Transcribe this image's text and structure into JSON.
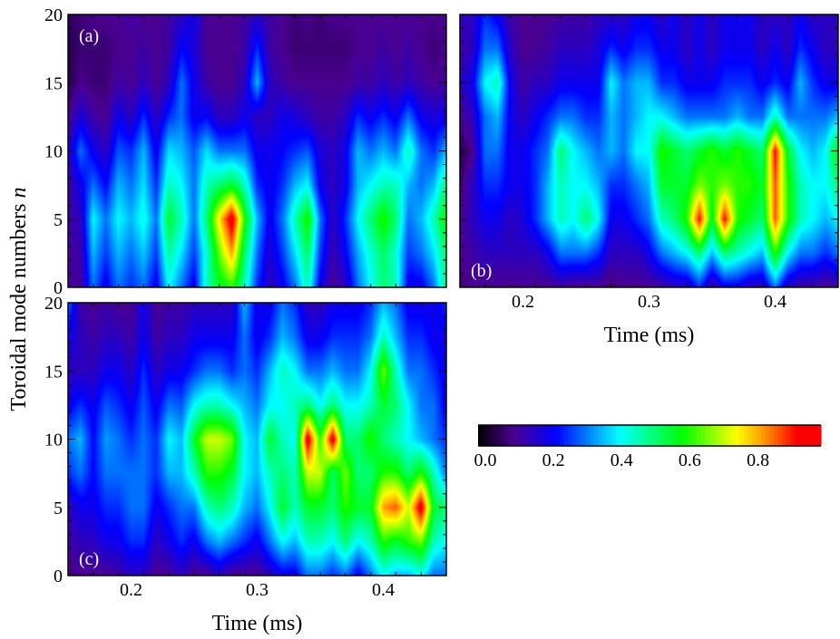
{
  "chart_data": [
    {
      "type": "heatmap",
      "panel_label": "(a)",
      "xlabel": "",
      "ylabel": "Toroidal mode numbers n",
      "xlim": [
        0.15,
        0.45
      ],
      "ylim": [
        0,
        20
      ],
      "x_ticks": [
        "0.2",
        "0.3",
        "0.4"
      ],
      "x_tick_labels_shown": false,
      "y_ticks": [
        "0",
        "5",
        "10",
        "15",
        "20"
      ],
      "x": [
        0.15,
        0.16,
        0.17,
        0.18,
        0.19,
        0.2,
        0.21,
        0.22,
        0.23,
        0.24,
        0.25,
        0.26,
        0.27,
        0.28,
        0.29,
        0.3,
        0.31,
        0.32,
        0.33,
        0.34,
        0.35,
        0.36,
        0.37,
        0.38,
        0.39,
        0.4,
        0.41,
        0.42,
        0.43,
        0.44,
        0.45
      ],
      "y": [
        0,
        2.5,
        5,
        7.5,
        10,
        12.5,
        15,
        17.5,
        20
      ],
      "values": [
        [
          0.1,
          0.12,
          0.3,
          0.2,
          0.3,
          0.25,
          0.3,
          0.2,
          0.4,
          0.3,
          0.2,
          0.45,
          0.55,
          0.6,
          0.45,
          0.25,
          0.15,
          0.2,
          0.3,
          0.45,
          0.2,
          0.1,
          0.15,
          0.3,
          0.4,
          0.5,
          0.45,
          0.2,
          0.2,
          0.3,
          0.5
        ],
        [
          0.11,
          0.13,
          0.35,
          0.26,
          0.35,
          0.3,
          0.36,
          0.26,
          0.47,
          0.38,
          0.26,
          0.43,
          0.64,
          0.8,
          0.51,
          0.3,
          0.17,
          0.26,
          0.38,
          0.51,
          0.26,
          0.13,
          0.21,
          0.34,
          0.43,
          0.51,
          0.43,
          0.26,
          0.3,
          0.38,
          0.51
        ],
        [
          0.12,
          0.15,
          0.4,
          0.3,
          0.4,
          0.35,
          0.42,
          0.3,
          0.55,
          0.45,
          0.3,
          0.5,
          0.75,
          0.95,
          0.6,
          0.35,
          0.2,
          0.3,
          0.45,
          0.6,
          0.3,
          0.15,
          0.25,
          0.4,
          0.5,
          0.6,
          0.5,
          0.3,
          0.35,
          0.45,
          0.6
        ],
        [
          0.12,
          0.2,
          0.3,
          0.22,
          0.35,
          0.3,
          0.38,
          0.25,
          0.45,
          0.4,
          0.3,
          0.45,
          0.5,
          0.55,
          0.45,
          0.25,
          0.2,
          0.25,
          0.35,
          0.4,
          0.2,
          0.15,
          0.2,
          0.35,
          0.4,
          0.45,
          0.45,
          0.35,
          0.3,
          0.35,
          0.5
        ],
        [
          0.15,
          0.3,
          0.2,
          0.15,
          0.28,
          0.25,
          0.35,
          0.2,
          0.38,
          0.35,
          0.28,
          0.38,
          0.3,
          0.3,
          0.3,
          0.2,
          0.2,
          0.22,
          0.25,
          0.28,
          0.18,
          0.15,
          0.2,
          0.35,
          0.3,
          0.35,
          0.3,
          0.45,
          0.3,
          0.25,
          0.35
        ],
        [
          0.1,
          0.18,
          0.12,
          0.1,
          0.2,
          0.15,
          0.25,
          0.15,
          0.25,
          0.3,
          0.2,
          0.22,
          0.15,
          0.15,
          0.2,
          0.15,
          0.15,
          0.2,
          0.18,
          0.15,
          0.12,
          0.12,
          0.15,
          0.25,
          0.2,
          0.25,
          0.2,
          0.3,
          0.2,
          0.18,
          0.2
        ],
        [
          0.05,
          0.1,
          0.08,
          0.08,
          0.12,
          0.1,
          0.15,
          0.1,
          0.15,
          0.3,
          0.2,
          0.12,
          0.1,
          0.1,
          0.15,
          0.35,
          0.15,
          0.12,
          0.1,
          0.1,
          0.1,
          0.1,
          0.1,
          0.12,
          0.12,
          0.15,
          0.12,
          0.15,
          0.12,
          0.1,
          0.12
        ],
        [
          0.05,
          0.08,
          0.08,
          0.08,
          0.1,
          0.1,
          0.12,
          0.1,
          0.12,
          0.22,
          0.18,
          0.1,
          0.1,
          0.1,
          0.12,
          0.25,
          0.12,
          0.1,
          0.08,
          0.08,
          0.08,
          0.08,
          0.08,
          0.1,
          0.1,
          0.12,
          0.1,
          0.12,
          0.1,
          0.08,
          0.1
        ],
        [
          0.06,
          0.08,
          0.1,
          0.1,
          0.1,
          0.12,
          0.1,
          0.1,
          0.12,
          0.15,
          0.2,
          0.1,
          0.1,
          0.1,
          0.12,
          0.15,
          0.12,
          0.1,
          0.08,
          0.1,
          0.08,
          0.1,
          0.1,
          0.1,
          0.1,
          0.1,
          0.1,
          0.1,
          0.1,
          0.1,
          0.1
        ]
      ]
    },
    {
      "type": "heatmap",
      "panel_label": "(b)",
      "xlabel": "Time (ms)",
      "ylabel": "",
      "xlim": [
        0.15,
        0.45
      ],
      "ylim": [
        0,
        20
      ],
      "x_ticks": [
        "0.2",
        "0.3",
        "0.4"
      ],
      "x_tick_labels_shown": true,
      "y_ticks": [],
      "x": [
        0.15,
        0.16,
        0.17,
        0.18,
        0.19,
        0.2,
        0.21,
        0.22,
        0.23,
        0.24,
        0.25,
        0.26,
        0.27,
        0.28,
        0.29,
        0.3,
        0.31,
        0.32,
        0.33,
        0.34,
        0.35,
        0.36,
        0.37,
        0.38,
        0.39,
        0.4,
        0.41,
        0.42,
        0.43,
        0.44,
        0.45
      ],
      "y": [
        0,
        2.5,
        5,
        7.5,
        10,
        12.5,
        15,
        17.5,
        20
      ],
      "values": [
        [
          0.08,
          0.1,
          0.1,
          0.1,
          0.1,
          0.1,
          0.1,
          0.1,
          0.12,
          0.1,
          0.1,
          0.1,
          0.08,
          0.1,
          0.1,
          0.1,
          0.12,
          0.15,
          0.15,
          0.25,
          0.12,
          0.2,
          0.2,
          0.15,
          0.15,
          0.3,
          0.15,
          0.12,
          0.12,
          0.1,
          0.12
        ],
        [
          0.1,
          0.12,
          0.15,
          0.15,
          0.15,
          0.15,
          0.15,
          0.2,
          0.3,
          0.3,
          0.3,
          0.25,
          0.15,
          0.15,
          0.15,
          0.2,
          0.3,
          0.35,
          0.4,
          0.5,
          0.35,
          0.5,
          0.45,
          0.4,
          0.35,
          0.6,
          0.4,
          0.3,
          0.3,
          0.25,
          0.3
        ],
        [
          0.1,
          0.15,
          0.2,
          0.2,
          0.15,
          0.18,
          0.25,
          0.35,
          0.45,
          0.4,
          0.5,
          0.4,
          0.2,
          0.2,
          0.25,
          0.3,
          0.45,
          0.5,
          0.6,
          0.9,
          0.55,
          0.9,
          0.6,
          0.55,
          0.5,
          0.85,
          0.6,
          0.45,
          0.4,
          0.35,
          0.4
        ],
        [
          0.08,
          0.15,
          0.25,
          0.25,
          0.2,
          0.2,
          0.25,
          0.35,
          0.45,
          0.4,
          0.4,
          0.35,
          0.25,
          0.25,
          0.3,
          0.35,
          0.55,
          0.55,
          0.55,
          0.65,
          0.6,
          0.65,
          0.6,
          0.6,
          0.55,
          0.85,
          0.6,
          0.45,
          0.4,
          0.4,
          0.5
        ],
        [
          0.05,
          0.1,
          0.3,
          0.3,
          0.2,
          0.2,
          0.25,
          0.3,
          0.5,
          0.4,
          0.35,
          0.3,
          0.35,
          0.3,
          0.4,
          0.4,
          0.6,
          0.55,
          0.5,
          0.55,
          0.6,
          0.55,
          0.6,
          0.55,
          0.5,
          0.9,
          0.55,
          0.4,
          0.35,
          0.4,
          0.6
        ],
        [
          0.1,
          0.15,
          0.3,
          0.35,
          0.2,
          0.15,
          0.2,
          0.25,
          0.3,
          0.3,
          0.25,
          0.25,
          0.35,
          0.3,
          0.35,
          0.4,
          0.4,
          0.35,
          0.3,
          0.3,
          0.3,
          0.3,
          0.35,
          0.3,
          0.3,
          0.45,
          0.3,
          0.3,
          0.3,
          0.3,
          0.35
        ],
        [
          0.15,
          0.2,
          0.4,
          0.45,
          0.2,
          0.12,
          0.15,
          0.15,
          0.2,
          0.2,
          0.2,
          0.2,
          0.4,
          0.3,
          0.35,
          0.35,
          0.25,
          0.25,
          0.2,
          0.2,
          0.2,
          0.25,
          0.25,
          0.25,
          0.2,
          0.25,
          0.2,
          0.35,
          0.25,
          0.2,
          0.2
        ],
        [
          0.12,
          0.15,
          0.3,
          0.3,
          0.15,
          0.1,
          0.1,
          0.12,
          0.15,
          0.15,
          0.15,
          0.18,
          0.25,
          0.2,
          0.25,
          0.25,
          0.2,
          0.2,
          0.15,
          0.2,
          0.15,
          0.2,
          0.2,
          0.2,
          0.15,
          0.2,
          0.15,
          0.25,
          0.2,
          0.15,
          0.15
        ],
        [
          0.15,
          0.15,
          0.25,
          0.2,
          0.12,
          0.1,
          0.1,
          0.1,
          0.12,
          0.12,
          0.12,
          0.15,
          0.15,
          0.15,
          0.2,
          0.2,
          0.15,
          0.2,
          0.15,
          0.2,
          0.15,
          0.2,
          0.2,
          0.2,
          0.15,
          0.15,
          0.15,
          0.2,
          0.15,
          0.15,
          0.15
        ]
      ]
    },
    {
      "type": "heatmap",
      "panel_label": "(c)",
      "xlabel": "Time (ms)",
      "ylabel": "",
      "xlim": [
        0.15,
        0.45
      ],
      "ylim": [
        0,
        20
      ],
      "x_ticks": [
        "0.2",
        "0.3",
        "0.4"
      ],
      "x_tick_labels_shown": true,
      "y_ticks": [
        "0",
        "5",
        "10",
        "15",
        "20"
      ],
      "x": [
        0.15,
        0.16,
        0.17,
        0.18,
        0.19,
        0.2,
        0.21,
        0.22,
        0.23,
        0.24,
        0.25,
        0.26,
        0.27,
        0.28,
        0.29,
        0.3,
        0.31,
        0.32,
        0.33,
        0.34,
        0.35,
        0.36,
        0.37,
        0.38,
        0.39,
        0.4,
        0.41,
        0.42,
        0.43,
        0.44,
        0.45
      ],
      "y": [
        0,
        2.5,
        5,
        7.5,
        10,
        12.5,
        15,
        17.5,
        20
      ],
      "values": [
        [
          0.08,
          0.1,
          0.1,
          0.1,
          0.12,
          0.15,
          0.15,
          0.1,
          0.1,
          0.15,
          0.1,
          0.1,
          0.15,
          0.1,
          0.1,
          0.1,
          0.15,
          0.2,
          0.2,
          0.3,
          0.3,
          0.25,
          0.3,
          0.2,
          0.3,
          0.4,
          0.35,
          0.35,
          0.4,
          0.3,
          0.3
        ],
        [
          0.12,
          0.15,
          0.15,
          0.2,
          0.2,
          0.25,
          0.25,
          0.15,
          0.2,
          0.25,
          0.2,
          0.3,
          0.35,
          0.3,
          0.25,
          0.2,
          0.3,
          0.4,
          0.35,
          0.45,
          0.45,
          0.4,
          0.5,
          0.4,
          0.45,
          0.6,
          0.55,
          0.6,
          0.65,
          0.45,
          0.4
        ],
        [
          0.15,
          0.2,
          0.2,
          0.25,
          0.25,
          0.3,
          0.3,
          0.2,
          0.25,
          0.3,
          0.3,
          0.45,
          0.5,
          0.45,
          0.35,
          0.3,
          0.4,
          0.55,
          0.45,
          0.55,
          0.55,
          0.5,
          0.6,
          0.55,
          0.55,
          0.8,
          0.85,
          0.7,
          0.95,
          0.55,
          0.5
        ],
        [
          0.25,
          0.3,
          0.22,
          0.3,
          0.3,
          0.3,
          0.3,
          0.25,
          0.35,
          0.35,
          0.45,
          0.6,
          0.6,
          0.55,
          0.4,
          0.35,
          0.45,
          0.5,
          0.45,
          0.7,
          0.7,
          0.5,
          0.65,
          0.5,
          0.5,
          0.6,
          0.6,
          0.5,
          0.6,
          0.45,
          0.3
        ],
        [
          0.3,
          0.35,
          0.22,
          0.33,
          0.3,
          0.25,
          0.3,
          0.25,
          0.4,
          0.35,
          0.55,
          0.7,
          0.7,
          0.65,
          0.4,
          0.35,
          0.55,
          0.45,
          0.4,
          0.95,
          0.6,
          0.95,
          0.5,
          0.5,
          0.6,
          0.5,
          0.45,
          0.4,
          0.35,
          0.3,
          0.25
        ],
        [
          0.2,
          0.25,
          0.2,
          0.28,
          0.25,
          0.2,
          0.28,
          0.2,
          0.3,
          0.28,
          0.4,
          0.45,
          0.45,
          0.4,
          0.35,
          0.3,
          0.4,
          0.4,
          0.45,
          0.5,
          0.4,
          0.5,
          0.4,
          0.4,
          0.45,
          0.55,
          0.5,
          0.4,
          0.3,
          0.3,
          0.2
        ],
        [
          0.15,
          0.15,
          0.15,
          0.2,
          0.2,
          0.15,
          0.25,
          0.15,
          0.2,
          0.2,
          0.25,
          0.3,
          0.3,
          0.25,
          0.3,
          0.25,
          0.35,
          0.45,
          0.4,
          0.3,
          0.3,
          0.35,
          0.3,
          0.3,
          0.4,
          0.65,
          0.45,
          0.3,
          0.3,
          0.25,
          0.2
        ],
        [
          0.2,
          0.15,
          0.12,
          0.15,
          0.15,
          0.12,
          0.2,
          0.12,
          0.15,
          0.15,
          0.2,
          0.2,
          0.2,
          0.2,
          0.3,
          0.2,
          0.25,
          0.35,
          0.3,
          0.2,
          0.2,
          0.25,
          0.25,
          0.25,
          0.3,
          0.45,
          0.35,
          0.25,
          0.25,
          0.2,
          0.2
        ],
        [
          0.3,
          0.12,
          0.1,
          0.12,
          0.1,
          0.1,
          0.2,
          0.1,
          0.12,
          0.12,
          0.15,
          0.15,
          0.15,
          0.15,
          0.35,
          0.2,
          0.2,
          0.3,
          0.25,
          0.15,
          0.15,
          0.2,
          0.2,
          0.2,
          0.25,
          0.35,
          0.3,
          0.2,
          0.2,
          0.2,
          0.25
        ]
      ]
    }
  ],
  "colorbar": {
    "range": [
      0.0,
      0.97
    ],
    "tick_values": [
      0.0,
      0.2,
      0.4,
      0.6,
      0.8
    ],
    "tick_labels": [
      "0.0",
      "0.2",
      "0.4",
      "0.6",
      "0.8"
    ],
    "colormap": [
      [
        0.0,
        "#000000"
      ],
      [
        0.1,
        "#4a0090"
      ],
      [
        0.22,
        "#0000ff"
      ],
      [
        0.4,
        "#00ffff"
      ],
      [
        0.58,
        "#00ff00"
      ],
      [
        0.73,
        "#ffff00"
      ],
      [
        0.8,
        "#ffa500"
      ],
      [
        0.9,
        "#ff0000"
      ],
      [
        1.0,
        "#ff0000"
      ]
    ]
  },
  "shared": {
    "ylabel": "Toroidal mode numbers",
    "ylabel_var": "n"
  }
}
